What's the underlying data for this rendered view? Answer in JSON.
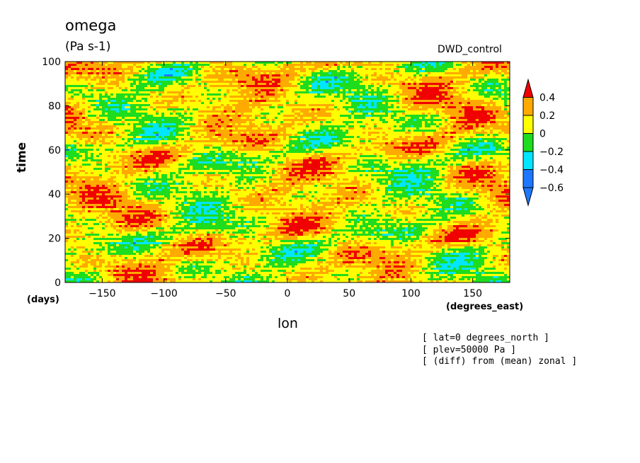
{
  "title": "omega",
  "units": "(Pa s-1)",
  "experiment": "DWD_control",
  "notes": [
    "[ lat=0 degrees_north ]",
    "[ plev=50000 Pa ]",
    "[ (diff) from (mean) zonal ]"
  ],
  "colors": {
    "lt_neg0_6": "#1e78ff",
    "neg0_6_to_neg0_4": "#1e78ff",
    "neg0_4_to_neg0_2": "#00e6ff",
    "neg0_2_to_0": "#1edc1e",
    "0_to_0_2": "#ffff00",
    "0_2_to_0_4": "#ffaa00",
    "gt_0_4": "#f00000"
  },
  "chart_data": {
    "type": "heatmap",
    "title": "omega",
    "subtitle": "(Pa s-1)",
    "xlabel": "lon",
    "xunits": "(degrees_east)",
    "ylabel": "time",
    "yunits": "(days)",
    "xlim": [
      -180,
      180
    ],
    "ylim": [
      0,
      100
    ],
    "xticks": [
      -150,
      -100,
      -50,
      0,
      50,
      100,
      150
    ],
    "yticks": [
      0,
      20,
      40,
      60,
      80,
      100
    ],
    "colorbar": {
      "levels": [
        -0.6,
        -0.4,
        -0.2,
        0,
        0.2,
        0.4
      ],
      "labels": [
        "0.4",
        "0.2",
        "0",
        "−0.2",
        "−0.4",
        "−0.6"
      ],
      "colors": [
        "#1e78ff",
        "#00e6ff",
        "#1edc1e",
        "#ffff00",
        "#ffaa00"
      ],
      "under": "#1e78ff",
      "over": "#f00000"
    }
  }
}
